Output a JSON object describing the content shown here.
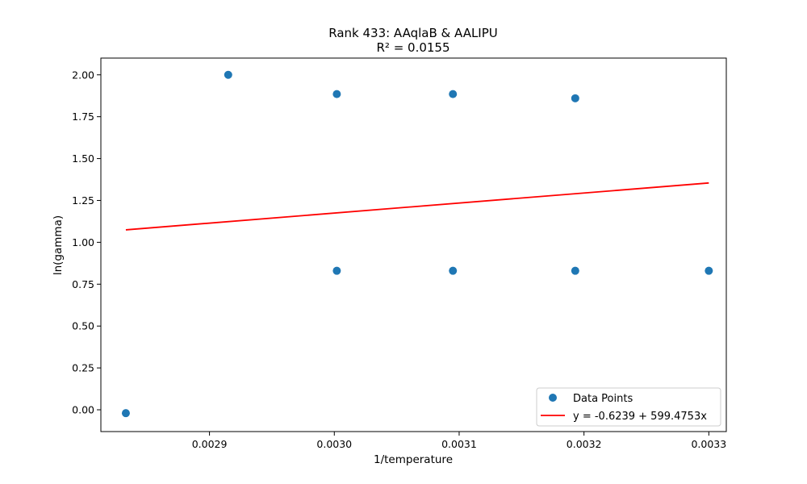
{
  "chart_data": {
    "type": "scatter",
    "title": "Rank 433: AAqlaB & AALIPU",
    "subtitle": "R² = 0.0155",
    "xlabel": "1/temperature",
    "ylabel": "ln(gamma)",
    "xlim": [
      0.002813,
      0.003314
    ],
    "ylim": [
      -0.13,
      2.1
    ],
    "x_ticks": [
      0.0029,
      0.003,
      0.0031,
      0.0032,
      0.0033
    ],
    "x_tick_labels": [
      "0.0029",
      "0.0030",
      "0.0031",
      "0.0032",
      "0.0033"
    ],
    "y_ticks": [
      0.0,
      0.25,
      0.5,
      0.75,
      1.0,
      1.25,
      1.5,
      1.75,
      2.0
    ],
    "y_tick_labels": [
      "0.00",
      "0.25",
      "0.50",
      "0.75",
      "1.00",
      "1.25",
      "1.50",
      "1.75",
      "2.00"
    ],
    "grid": false,
    "legend_position": "bottom-right",
    "series": [
      {
        "name": "Data Points",
        "kind": "scatter",
        "color": "#1f77b4",
        "x": [
          0.002833,
          0.002915,
          0.003002,
          0.003002,
          0.003095,
          0.003095,
          0.003193,
          0.003193,
          0.0033
        ],
        "y": [
          -0.02,
          2.0,
          1.885,
          0.83,
          1.885,
          0.83,
          1.86,
          0.83,
          0.83
        ]
      },
      {
        "name": "y = -0.6239 + 599.4753x",
        "kind": "line",
        "color": "#ff0000",
        "intercept": -0.6239,
        "slope": 599.4753,
        "x_range": [
          0.002833,
          0.0033
        ]
      }
    ]
  }
}
